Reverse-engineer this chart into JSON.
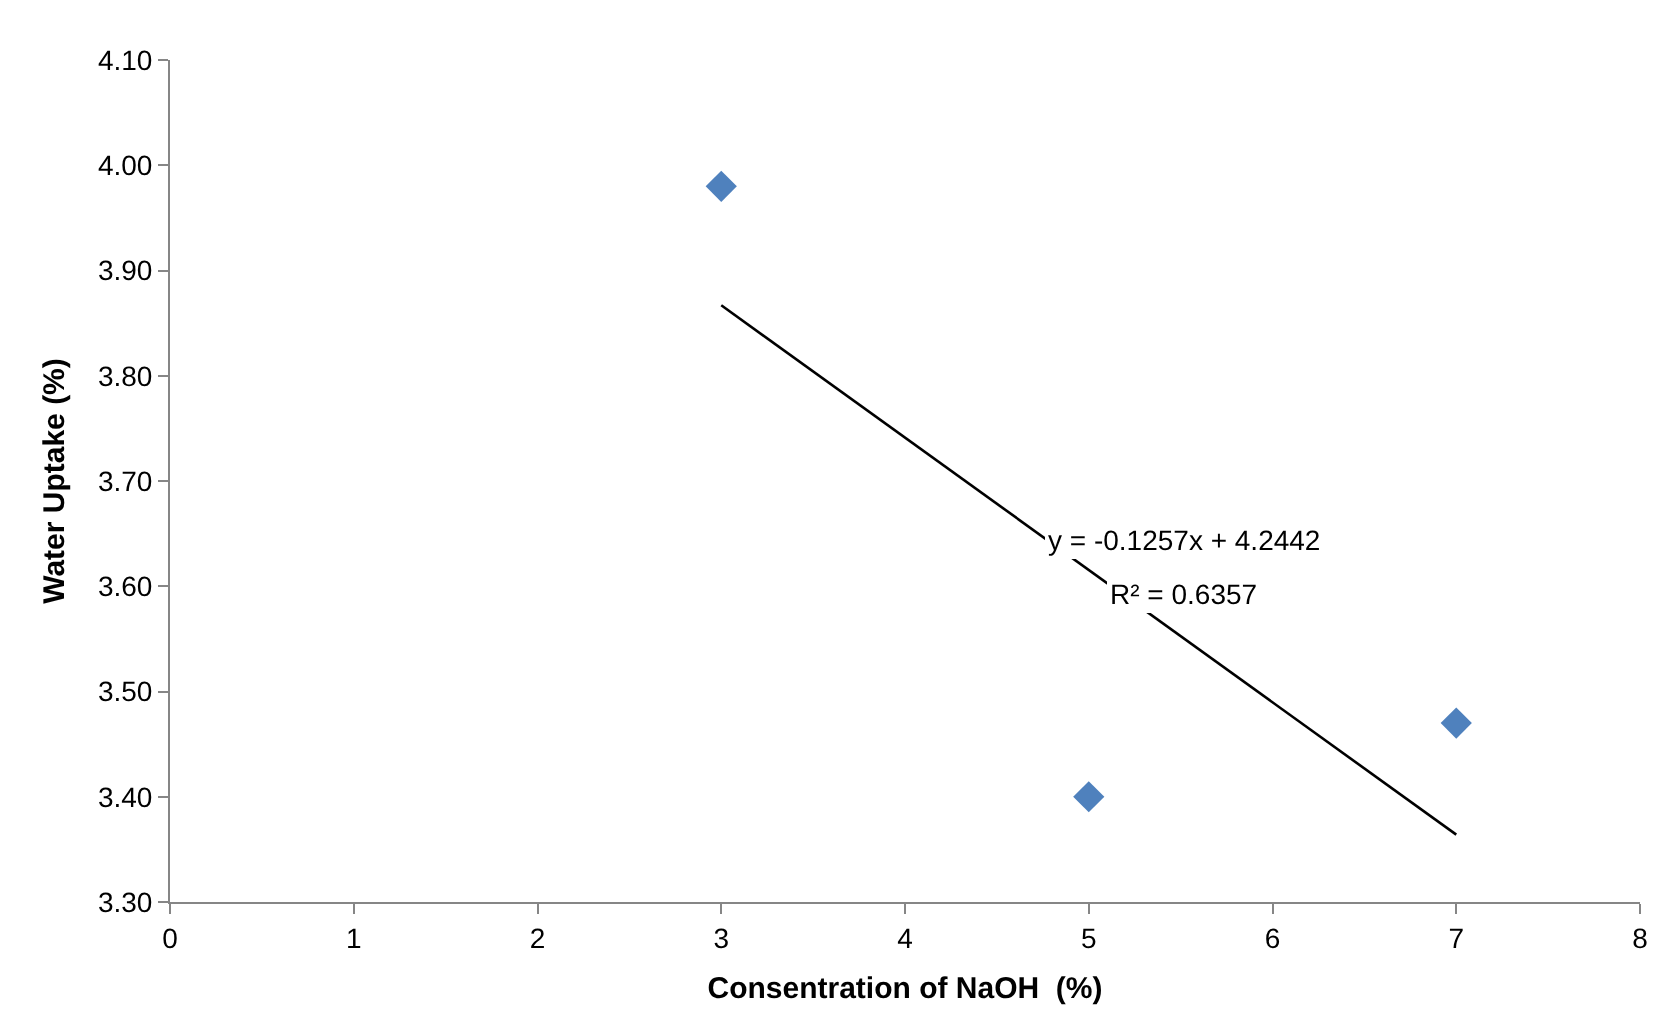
{
  "chart_data": {
    "type": "scatter",
    "xlabel": "Consentration of NaOH  (%)",
    "ylabel": "Water Uptake (%)",
    "xlim": [
      0,
      8
    ],
    "xticks": [
      0,
      1,
      2,
      3,
      4,
      5,
      6,
      7,
      8
    ],
    "ylim": [
      3.3,
      4.1
    ],
    "yticks": [
      {
        "value": 3.3,
        "label": "3.30"
      },
      {
        "value": 3.4,
        "label": "3.40"
      },
      {
        "value": 3.5,
        "label": "3.50"
      },
      {
        "value": 3.6,
        "label": "3.60"
      },
      {
        "value": 3.7,
        "label": "3.70"
      },
      {
        "value": 3.8,
        "label": "3.80"
      },
      {
        "value": 3.9,
        "label": "3.90"
      },
      {
        "value": 4.0,
        "label": "4.00"
      },
      {
        "value": 4.1,
        "label": "4.10"
      }
    ],
    "grid": false,
    "series": [
      {
        "color": "#4f81bd",
        "marker": "diamond",
        "x": [
          3,
          5,
          7
        ],
        "values": [
          3.98,
          3.4,
          3.47
        ]
      },
      {
        "type": "line",
        "color": "#000000",
        "marker": "none",
        "line_style": "solid",
        "x": [
          3,
          7
        ],
        "values": [
          3.867,
          3.364
        ]
      }
    ],
    "annotations": [
      "y = -0.1257x + 4.2442",
      "R² = 0.6357"
    ]
  }
}
